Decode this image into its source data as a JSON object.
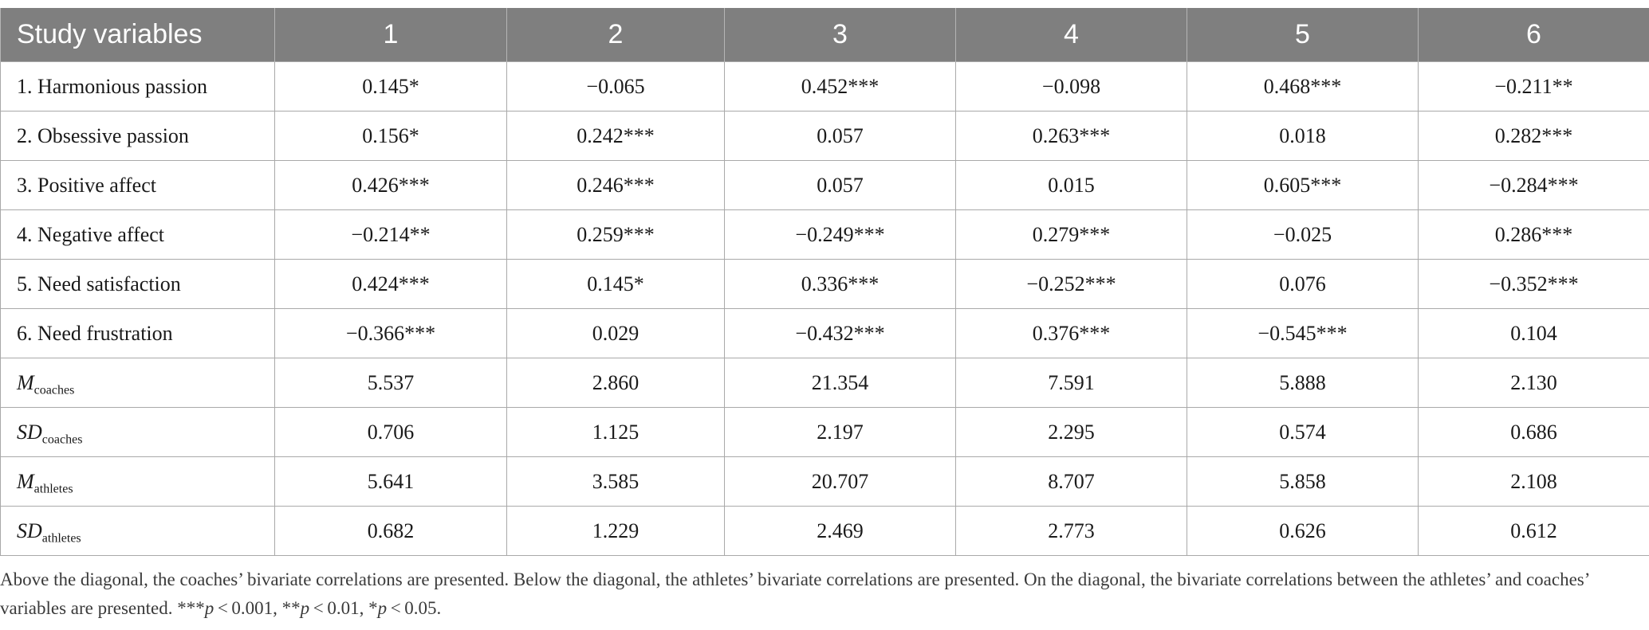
{
  "table": {
    "header": [
      "Study variables",
      "1",
      "2",
      "3",
      "4",
      "5",
      "6"
    ],
    "rows": [
      {
        "label": "1. Harmonious passion",
        "cells": [
          "0.145*",
          "−0.065",
          "0.452***",
          "−0.098",
          "0.468***",
          "−0.211**"
        ]
      },
      {
        "label": "2. Obsessive passion",
        "cells": [
          "0.156*",
          "0.242***",
          "0.057",
          "0.263***",
          "0.018",
          "0.282***"
        ]
      },
      {
        "label": "3. Positive affect",
        "cells": [
          "0.426***",
          "0.246***",
          "0.057",
          "0.015",
          "0.605***",
          "−0.284***"
        ]
      },
      {
        "label": "4. Negative affect",
        "cells": [
          "−0.214**",
          "0.259***",
          "−0.249***",
          "0.279***",
          "−0.025",
          "0.286***"
        ]
      },
      {
        "label": "5. Need satisfaction",
        "cells": [
          "0.424***",
          "0.145*",
          "0.336***",
          "−0.252***",
          "0.076",
          "−0.352***"
        ]
      },
      {
        "label": "6. Need frustration",
        "cells": [
          "−0.366***",
          "0.029",
          "−0.432***",
          "0.376***",
          "−0.545***",
          "0.104"
        ]
      }
    ],
    "stat_rows": [
      {
        "symbol": "M",
        "subscript": "coaches",
        "cells": [
          "5.537",
          "2.860",
          "21.354",
          "7.591",
          "5.888",
          "2.130"
        ]
      },
      {
        "symbol": "SD",
        "subscript": "coaches",
        "cells": [
          "0.706",
          "1.125",
          "2.197",
          "2.295",
          "0.574",
          "0.686"
        ]
      },
      {
        "symbol": "M",
        "subscript": "athletes",
        "cells": [
          "5.641",
          "3.585",
          "20.707",
          "8.707",
          "5.858",
          "2.108"
        ]
      },
      {
        "symbol": "SD",
        "subscript": "athletes",
        "cells": [
          "0.682",
          "1.229",
          "2.469",
          "2.773",
          "0.626",
          "0.612"
        ]
      }
    ]
  },
  "footnote": {
    "text": "Above the diagonal, the coaches’ bivariate correlations are presented. Below the diagonal, the athletes’ bivariate correlations are presented. On the diagonal, the bivariate correlations between the athletes’ and coaches’ variables are presented.",
    "sig": [
      {
        "stars": "***",
        "p": "p",
        "rest": " < 0.001"
      },
      {
        "stars": "**",
        "p": "p",
        "rest": " < 0.01"
      },
      {
        "stars": "*",
        "p": "p",
        "rest": " < 0.05."
      }
    ]
  },
  "colors": {
    "header_bg": "#7f7f7f",
    "header_text": "#ffffff",
    "grid": "#a9a9a9"
  }
}
